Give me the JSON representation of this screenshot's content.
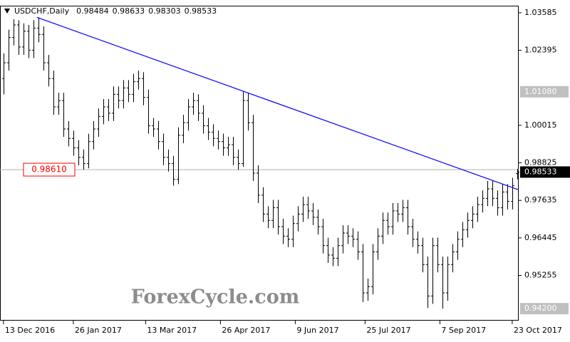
{
  "chart_data": {
    "type": "ohlc",
    "title": "USDCHF,Daily",
    "watermark": "ForexCycle.com",
    "series": [
      {
        "name": "USDCHF",
        "color": "#000000",
        "values": [
          [
            1.015,
            1.023,
            1.01,
            1.02
          ],
          [
            1.02,
            1.0305,
            1.0175,
            1.028
          ],
          [
            1.028,
            1.0338,
            1.0255,
            1.032
          ],
          [
            1.032,
            1.0335,
            1.0225,
            1.025
          ],
          [
            1.025,
            1.0325,
            1.0225,
            1.03
          ],
          [
            1.03,
            1.032,
            1.0215,
            1.024
          ],
          [
            1.024,
            1.0335,
            1.0215,
            1.031
          ],
          [
            1.031,
            1.0344,
            1.0265,
            1.029
          ],
          [
            1.029,
            1.0315,
            1.0175,
            1.02
          ],
          [
            1.02,
            1.0225,
            1.0125,
            1.015
          ],
          [
            1.015,
            1.0175,
            1.0035,
            1.006
          ],
          [
            1.006,
            1.0105,
            1.0035,
            1.008
          ],
          [
            1.008,
            1.0105,
            0.9965,
            0.999
          ],
          [
            0.999,
            1.0015,
            0.9935,
            0.996
          ],
          [
            0.996,
            0.9985,
            0.9905,
            0.993
          ],
          [
            0.993,
            0.9955,
            0.9875,
            0.99
          ],
          [
            0.99,
            0.9925,
            0.9861,
            0.988
          ],
          [
            0.988,
            0.9975,
            0.9865,
            0.995
          ],
          [
            0.995,
            1.0015,
            0.9925,
            0.999
          ],
          [
            0.999,
            1.0055,
            0.9965,
            1.003
          ],
          [
            1.003,
            1.0085,
            1.0005,
            1.006
          ],
          [
            1.006,
            1.0085,
            1.0015,
            1.004
          ],
          [
            1.004,
            1.0125,
            1.0015,
            1.01
          ],
          [
            1.01,
            1.0125,
            1.0055,
            1.008
          ],
          [
            1.008,
            1.0145,
            1.0055,
            1.012
          ],
          [
            1.012,
            1.0145,
            1.0075,
            1.01
          ],
          [
            1.01,
            1.0165,
            1.0075,
            1.014
          ],
          [
            1.014,
            1.0175,
            1.0115,
            1.015
          ],
          [
            1.015,
            1.017,
            1.0065,
            1.009
          ],
          [
            1.009,
            1.0115,
            0.9975,
            1.0
          ],
          [
            1.0,
            1.0025,
            0.9965,
            0.999
          ],
          [
            0.999,
            1.0015,
            0.9925,
            0.995
          ],
          [
            0.995,
            0.9975,
            0.9875,
            0.99
          ],
          [
            0.99,
            0.9925,
            0.9855,
            0.988
          ],
          [
            0.988,
            0.9905,
            0.981,
            0.983
          ],
          [
            0.983,
            0.9995,
            0.9815,
            0.997
          ],
          [
            0.997,
            1.0035,
            0.9945,
            1.001
          ],
          [
            1.001,
            1.0085,
            0.9985,
            1.006
          ],
          [
            1.006,
            1.0105,
            1.0035,
            1.008
          ],
          [
            1.008,
            1.01,
            1.0015,
            1.004
          ],
          [
            1.004,
            1.0065,
            0.9975,
            1.0
          ],
          [
            1.0,
            1.0025,
            0.9955,
            0.998
          ],
          [
            0.998,
            1.0005,
            0.9935,
            0.996
          ],
          [
            0.996,
            0.9985,
            0.9925,
            0.995
          ],
          [
            0.995,
            0.9975,
            0.9905,
            0.993
          ],
          [
            0.993,
            0.9965,
            0.9905,
            0.994
          ],
          [
            0.994,
            0.9965,
            0.9875,
            0.99
          ],
          [
            0.99,
            0.9925,
            0.986,
            0.988
          ],
          [
            0.988,
            1.011,
            0.987,
            1.008
          ],
          [
            1.008,
            1.0105,
            0.9985,
            1.001
          ],
          [
            1.001,
            1.0035,
            0.9825,
            0.985
          ],
          [
            0.985,
            0.9875,
            0.9755,
            0.978
          ],
          [
            0.978,
            0.9805,
            0.9695,
            0.972
          ],
          [
            0.972,
            0.9745,
            0.9675,
            0.97
          ],
          [
            0.97,
            0.9765,
            0.9675,
            0.974
          ],
          [
            0.974,
            0.9765,
            0.9655,
            0.968
          ],
          [
            0.968,
            0.9705,
            0.9625,
            0.965
          ],
          [
            0.965,
            0.9675,
            0.9615,
            0.964
          ],
          [
            0.964,
            0.9715,
            0.9615,
            0.969
          ],
          [
            0.969,
            0.9745,
            0.9665,
            0.972
          ],
          [
            0.972,
            0.9775,
            0.9695,
            0.975
          ],
          [
            0.975,
            0.9775,
            0.9705,
            0.973
          ],
          [
            0.973,
            0.9755,
            0.9685,
            0.971
          ],
          [
            0.971,
            0.9735,
            0.9655,
            0.968
          ],
          [
            0.968,
            0.9705,
            0.9595,
            0.962
          ],
          [
            0.962,
            0.9645,
            0.9565,
            0.959
          ],
          [
            0.959,
            0.9615,
            0.9555,
            0.958
          ],
          [
            0.958,
            0.9645,
            0.9555,
            0.962
          ],
          [
            0.962,
            0.9685,
            0.9595,
            0.966
          ],
          [
            0.966,
            0.9685,
            0.9625,
            0.965
          ],
          [
            0.965,
            0.9675,
            0.9615,
            0.964
          ],
          [
            0.964,
            0.9665,
            0.9575,
            0.96
          ],
          [
            0.96,
            0.9625,
            0.9441,
            0.947
          ],
          [
            0.947,
            0.9515,
            0.9445,
            0.949
          ],
          [
            0.949,
            0.9625,
            0.9465,
            0.96
          ],
          [
            0.96,
            0.9675,
            0.9575,
            0.965
          ],
          [
            0.965,
            0.9725,
            0.9625,
            0.97
          ],
          [
            0.97,
            0.9725,
            0.9655,
            0.968
          ],
          [
            0.968,
            0.9755,
            0.9655,
            0.973
          ],
          [
            0.973,
            0.9755,
            0.9695,
            0.972
          ],
          [
            0.972,
            0.9765,
            0.9695,
            0.974
          ],
          [
            0.974,
            0.9765,
            0.9655,
            0.968
          ],
          [
            0.968,
            0.9705,
            0.9615,
            0.964
          ],
          [
            0.964,
            0.9665,
            0.9595,
            0.962
          ],
          [
            0.962,
            0.9645,
            0.9535,
            0.956
          ],
          [
            0.956,
            0.9585,
            0.9422,
            0.946
          ],
          [
            0.946,
            0.9645,
            0.9435,
            0.962
          ],
          [
            0.962,
            0.9645,
            0.9535,
            0.956
          ],
          [
            0.956,
            0.9585,
            0.942,
            0.947
          ],
          [
            0.947,
            0.9585,
            0.9445,
            0.956
          ],
          [
            0.956,
            0.9625,
            0.9535,
            0.96
          ],
          [
            0.96,
            0.9665,
            0.9575,
            0.964
          ],
          [
            0.964,
            0.9695,
            0.9615,
            0.967
          ],
          [
            0.967,
            0.9725,
            0.9645,
            0.97
          ],
          [
            0.97,
            0.9745,
            0.9675,
            0.972
          ],
          [
            0.972,
            0.9775,
            0.9695,
            0.975
          ],
          [
            0.975,
            0.9795,
            0.9725,
            0.977
          ],
          [
            0.977,
            0.9825,
            0.9745,
            0.98
          ],
          [
            0.98,
            0.9825,
            0.9745,
            0.977
          ],
          [
            0.977,
            0.9795,
            0.9715,
            0.974
          ],
          [
            0.974,
            0.9815,
            0.9715,
            0.979
          ],
          [
            0.979,
            0.9815,
            0.9735,
            0.976
          ],
          [
            0.976,
            0.9835,
            0.9735,
            0.981
          ],
          [
            0.98484,
            0.98633,
            0.98303,
            0.98533
          ]
        ]
      }
    ],
    "xlim": [
      -0.7,
      103.3
    ],
    "xticks": [
      {
        "value": 0,
        "label": "13 Dec 2016"
      },
      {
        "value": 14,
        "label": "26 Jan 2017"
      },
      {
        "value": 28.5,
        "label": "13 Mar 2017"
      },
      {
        "value": 43.5,
        "label": "26 Apr 2017"
      },
      {
        "value": 58.5,
        "label": "9 Jun 2017"
      },
      {
        "value": 72.5,
        "label": "25 Jul 2017"
      },
      {
        "value": 87.5,
        "label": "7 Sep 2017"
      },
      {
        "value": 102,
        "label": "23 Oct 2017"
      }
    ],
    "ylim": [
      0.9382,
      1.0381
    ],
    "yticks": [
      1.03585,
      1.02395,
      1.00015,
      0.98825,
      0.97635,
      0.96445,
      0.95255
    ],
    "price_labels": [
      {
        "value": 1.0108,
        "label": "1.01080"
      },
      {
        "value": 0.942,
        "label": "0.94200"
      }
    ],
    "horizontal_line": {
      "value": 0.9861,
      "label": "0.98610",
      "color": "#ff0000"
    },
    "trendline": {
      "x": [
        6.7,
        103.3
      ],
      "y": [
        1.0344,
        0.9797
      ],
      "color": "#0000ff"
    },
    "grid": false
  }
}
